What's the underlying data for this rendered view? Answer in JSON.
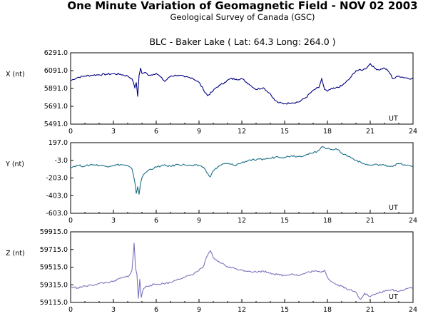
{
  "header": {
    "title": "One Minute Variation of Geomagnetic Field - NOV 02 2003",
    "subtitle": "Geological Survey of Canada (GSC)",
    "station": "BLC - Baker Lake ( Lat: 64.3  Long: 264.0 )"
  },
  "chart_data": [
    {
      "type": "line",
      "ylabel": "X (nt)",
      "xlabel": "UT",
      "xlim": [
        0,
        24
      ],
      "ylim": [
        5491.0,
        6291.0
      ],
      "x_ticks": [
        "0",
        "3",
        "6",
        "9",
        "12",
        "15",
        "18",
        "21",
        "24"
      ],
      "y_ticks": [
        "6291.0",
        "6091.0",
        "5891.0",
        "5691.0",
        "5491.0"
      ],
      "series": [
        {
          "color": "#000080",
          "x": [
            0,
            0.5,
            1.0,
            1.5,
            2.0,
            2.5,
            3.0,
            3.5,
            4.0,
            4.3,
            4.5,
            4.6,
            4.7,
            4.8,
            4.9,
            5.0,
            5.2,
            5.5,
            5.8,
            6.0,
            6.3,
            6.6,
            7.0,
            7.5,
            8.0,
            8.5,
            9.0,
            9.3,
            9.6,
            9.9,
            10.2,
            10.5,
            10.8,
            11.2,
            11.6,
            12.0,
            12.5,
            13.0,
            13.5,
            14.0,
            14.3,
            14.6,
            15.0,
            15.5,
            16.0,
            16.5,
            16.8,
            17.1,
            17.4,
            17.6,
            17.8,
            18.0,
            18.2,
            18.5,
            19.0,
            19.5,
            20.0,
            20.5,
            20.8,
            21.0,
            21.3,
            21.6,
            22.0,
            22.3,
            22.6,
            23.0,
            23.5,
            24.0
          ],
          "y": [
            5980,
            6015,
            6030,
            6040,
            6045,
            6050,
            6055,
            6050,
            6030,
            6000,
            5900,
            5960,
            5800,
            6040,
            6120,
            6060,
            6070,
            6040,
            6050,
            6060,
            6020,
            5970,
            6030,
            6040,
            6020,
            6010,
            5960,
            5880,
            5810,
            5850,
            5900,
            5930,
            5960,
            6000,
            5995,
            6000,
            5940,
            5880,
            5900,
            5830,
            5760,
            5730,
            5720,
            5730,
            5740,
            5790,
            5840,
            5880,
            5900,
            6000,
            5880,
            5860,
            5880,
            5890,
            5920,
            5990,
            6090,
            6100,
            6130,
            6170,
            6120,
            6100,
            6120,
            6080,
            6000,
            6030,
            6010,
            6000
          ]
        }
      ]
    },
    {
      "type": "line",
      "ylabel": "Y (nt)",
      "xlabel": "UT",
      "xlim": [
        0,
        24
      ],
      "ylim": [
        -603.0,
        197.0
      ],
      "x_ticks": [
        "0",
        "3",
        "6",
        "9",
        "12",
        "15",
        "18",
        "21",
        "24"
      ],
      "y_ticks": [
        "197.0",
        "-3.0",
        "-203.0",
        "-403.0",
        "-603.0"
      ],
      "series": [
        {
          "color": "#1a6f87",
          "x": [
            0,
            0.5,
            1.0,
            1.5,
            2.0,
            2.5,
            3.0,
            3.5,
            4.0,
            4.3,
            4.5,
            4.6,
            4.7,
            4.8,
            4.9,
            5.0,
            5.2,
            5.5,
            6.0,
            6.5,
            7.0,
            7.5,
            8.0,
            8.5,
            9.0,
            9.3,
            9.6,
            9.8,
            10.0,
            10.3,
            10.6,
            11.0,
            11.5,
            12.0,
            12.5,
            13.0,
            13.5,
            14.0,
            14.5,
            15.0,
            15.5,
            16.0,
            16.5,
            17.0,
            17.3,
            17.6,
            17.8,
            18.0,
            18.3,
            18.6,
            19.0,
            19.5,
            20.0,
            20.5,
            21.0,
            21.5,
            22.0,
            22.5,
            23.0,
            23.5,
            24.0
          ],
          "y": [
            -80,
            -60,
            -70,
            -50,
            -60,
            -70,
            -60,
            -50,
            -65,
            -100,
            -250,
            -380,
            -300,
            -390,
            -260,
            -200,
            -150,
            -110,
            -80,
            -60,
            -70,
            -50,
            -55,
            -65,
            -60,
            -80,
            -150,
            -190,
            -120,
            -80,
            -50,
            -40,
            -60,
            -30,
            0,
            0,
            10,
            20,
            40,
            30,
            50,
            40,
            60,
            80,
            100,
            150,
            140,
            130,
            120,
            130,
            80,
            40,
            0,
            -40,
            -60,
            -50,
            -60,
            -70,
            -40,
            -60,
            -70
          ]
        }
      ]
    },
    {
      "type": "line",
      "ylabel": "Z (nt)",
      "xlabel": "UT",
      "xlim": [
        0,
        24
      ],
      "ylim": [
        59115.0,
        59915.0
      ],
      "x_ticks": [
        "0",
        "3",
        "6",
        "9",
        "12",
        "15",
        "18",
        "21",
        "24"
      ],
      "y_ticks": [
        "59915.0",
        "59715.0",
        "59515.0",
        "59315.0",
        "59115.0"
      ],
      "series": [
        {
          "color": "#7a73bd",
          "x": [
            0,
            0.5,
            1.0,
            1.5,
            2.0,
            2.5,
            3.0,
            3.5,
            3.8,
            4.1,
            4.3,
            4.45,
            4.55,
            4.65,
            4.75,
            4.85,
            4.95,
            5.1,
            5.3,
            5.6,
            6.0,
            6.5,
            7.0,
            7.5,
            8.0,
            8.5,
            9.0,
            9.3,
            9.6,
            9.8,
            10.0,
            10.3,
            10.6,
            11.0,
            11.5,
            12.0,
            12.5,
            13.0,
            13.5,
            14.0,
            14.5,
            15.0,
            15.5,
            16.0,
            16.5,
            17.0,
            17.5,
            17.8,
            18.0,
            18.3,
            18.6,
            19.0,
            19.5,
            20.0,
            20.3,
            20.6,
            21.0,
            21.5,
            22.0,
            22.5,
            23.0,
            23.5,
            24.0
          ],
          "y": [
            59290,
            59280,
            59300,
            59310,
            59330,
            59340,
            59350,
            59390,
            59400,
            59420,
            59480,
            59790,
            59500,
            59430,
            59160,
            59380,
            59170,
            59270,
            59300,
            59310,
            59320,
            59330,
            59340,
            59380,
            59400,
            59430,
            59480,
            59520,
            59650,
            59700,
            59620,
            59580,
            59560,
            59520,
            59500,
            59480,
            59470,
            59460,
            59470,
            59450,
            59430,
            59420,
            59440,
            59420,
            59450,
            59470,
            59460,
            59480,
            59400,
            59350,
            59320,
            59300,
            59260,
            59230,
            59150,
            59220,
            59180,
            59220,
            59240,
            59260,
            59240,
            59270,
            59290
          ]
        }
      ]
    }
  ]
}
